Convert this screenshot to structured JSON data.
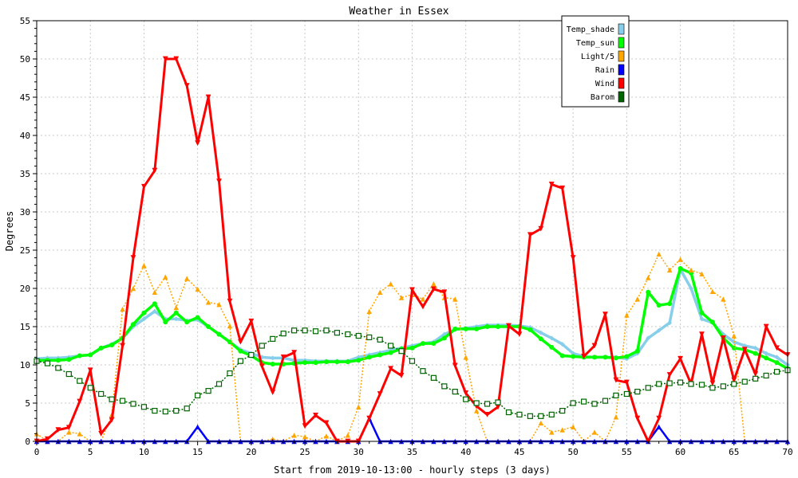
{
  "chart_data": {
    "type": "line",
    "title": "Weather in Essex",
    "xlabel": "Start from 2019-10-13:00 - hourly steps (3 days)",
    "ylabel": "Degrees",
    "xlim": [
      0,
      70
    ],
    "ylim": [
      0,
      55
    ],
    "x_ticks": [
      0,
      5,
      10,
      15,
      20,
      25,
      30,
      35,
      40,
      45,
      50,
      55,
      60,
      65,
      70
    ],
    "y_ticks": [
      0,
      5,
      10,
      15,
      20,
      25,
      30,
      35,
      40,
      45,
      50,
      55
    ],
    "grid": true,
    "legend_position": "top-right",
    "series": [
      {
        "name": "Temp_shade",
        "color": "#87ceeb",
        "marker": "diamond",
        "values": [
          10.8,
          10.9,
          10.9,
          11,
          11.2,
          11.3,
          12.2,
          12.7,
          13.5,
          15,
          16,
          17,
          16,
          16,
          15.8,
          15.9,
          15,
          14,
          13,
          12,
          11.5,
          11,
          10.9,
          10.9,
          10.6,
          10.6,
          10.5,
          10.5,
          10.5,
          10.5,
          11,
          11.3,
          11.6,
          11.9,
          12.2,
          12.5,
          12.8,
          13,
          14,
          14.6,
          14.8,
          15,
          15.2,
          15.2,
          15.2,
          15.1,
          14.9,
          14.2,
          13.5,
          12.7,
          11.5,
          11.1,
          11,
          11,
          11,
          10.8,
          11.5,
          13.5,
          14.5,
          15.5,
          22.5,
          20,
          16,
          15.5,
          14,
          13,
          12.5,
          12.2,
          11.5,
          11,
          10
        ]
      },
      {
        "name": "Temp_sun",
        "color": "#00ff00",
        "marker": "circle",
        "values": [
          10.6,
          10.6,
          10.6,
          10.7,
          11.2,
          11.3,
          12.2,
          12.6,
          13.5,
          15.3,
          16.8,
          18,
          15.6,
          16.8,
          15.6,
          16.2,
          15,
          14,
          13,
          11.8,
          11.2,
          10.3,
          10.1,
          10.1,
          10.2,
          10.3,
          10.3,
          10.4,
          10.4,
          10.4,
          10.6,
          11,
          11.3,
          11.6,
          12.1,
          12.2,
          12.8,
          12.8,
          13.5,
          14.7,
          14.7,
          14.7,
          15,
          15,
          15,
          15,
          14.6,
          13.4,
          12.3,
          11.2,
          11.1,
          11,
          11,
          11,
          10.9,
          11.1,
          11.8,
          19.5,
          17.8,
          18,
          22.6,
          22,
          16.8,
          15.6,
          13.5,
          12.2,
          12,
          11.5,
          10.9,
          10.3,
          9.5
        ]
      },
      {
        "name": "Light/5",
        "color": "#ffa500",
        "marker": "triangle-up",
        "values": [
          1,
          0,
          0,
          1.2,
          1,
          0,
          0,
          3.5,
          17.3,
          20,
          23,
          19.5,
          21.5,
          17.5,
          21.3,
          19.9,
          18.2,
          17.9,
          15.1,
          0,
          0,
          0,
          0.3,
          0,
          0.8,
          0.6,
          0,
          0.7,
          0,
          0.8,
          4.5,
          17,
          19.5,
          20.6,
          18.8,
          19.2,
          18.6,
          20.6,
          18.8,
          18.6,
          11,
          4,
          0,
          0,
          0,
          0,
          0,
          2.4,
          1.2,
          1.5,
          1.9,
          0,
          1.2,
          0,
          3.2,
          16.5,
          18.6,
          21.4,
          24.5,
          22.4,
          23.8,
          22.4,
          21.9,
          19.6,
          18.6,
          13.8,
          0,
          0,
          0,
          0,
          0
        ]
      },
      {
        "name": "Rain",
        "color": "#0000ff",
        "marker": "triangle-up",
        "values": [
          0,
          0,
          0,
          0,
          0,
          0,
          0,
          0,
          0,
          0,
          0,
          0,
          0,
          0,
          0,
          1.9,
          0,
          0,
          0,
          0,
          0,
          0,
          0,
          0,
          0,
          0,
          0,
          0,
          0,
          0,
          0,
          3,
          0,
          0,
          0,
          0,
          0,
          0,
          0,
          0,
          0,
          0,
          0,
          0,
          0,
          0,
          0,
          0,
          0,
          0,
          0,
          0,
          0,
          0,
          0,
          0,
          0,
          0,
          1.9,
          0,
          0,
          0,
          0,
          0,
          0,
          0,
          0,
          0,
          0,
          0,
          0
        ]
      },
      {
        "name": "Wind",
        "color": "#ff0000",
        "marker": "triangle-down",
        "values": [
          0,
          0.3,
          1.5,
          1.8,
          5.2,
          9.3,
          1,
          2.8,
          12.5,
          24,
          33.3,
          35.4,
          50,
          50,
          46.5,
          39,
          45,
          34,
          18.3,
          13,
          15.7,
          9.8,
          6.4,
          11,
          11.6,
          2,
          3.4,
          2.4,
          0,
          0,
          0,
          3,
          6.2,
          9.5,
          8.6,
          19.8,
          17.6,
          19.9,
          19.5,
          9.9,
          6.3,
          4.6,
          3.5,
          4.5,
          15.1,
          14,
          27,
          27.8,
          33.6,
          33.1,
          24,
          11.1,
          12.5,
          16.6,
          8,
          7.7,
          3,
          0,
          3,
          8.7,
          10.8,
          7.5,
          14,
          7.6,
          13.5,
          8,
          12,
          8.8,
          15,
          12.2,
          11.3
        ]
      },
      {
        "name": "Barom",
        "color": "#006400",
        "marker": "square",
        "values": [
          10.5,
          10.2,
          9.6,
          8.8,
          7.9,
          7,
          6.2,
          5.5,
          5.3,
          4.9,
          4.5,
          4,
          3.9,
          4,
          4.3,
          6,
          6.6,
          7.5,
          8.9,
          10.5,
          11.3,
          12.5,
          13.4,
          14.1,
          14.5,
          14.5,
          14.4,
          14.5,
          14.2,
          14,
          13.8,
          13.6,
          13.3,
          12.5,
          11.8,
          10.5,
          9.2,
          8.3,
          7.2,
          6.5,
          5.5,
          5,
          4.9,
          5.1,
          3.8,
          3.5,
          3.3,
          3.3,
          3.5,
          4,
          5,
          5.2,
          4.9,
          5.3,
          6,
          6.2,
          6.5,
          7,
          7.5,
          7.6,
          7.7,
          7.5,
          7.4,
          7,
          7.2,
          7.5,
          7.8,
          8.2,
          8.6,
          9.1,
          9.3
        ]
      }
    ]
  }
}
